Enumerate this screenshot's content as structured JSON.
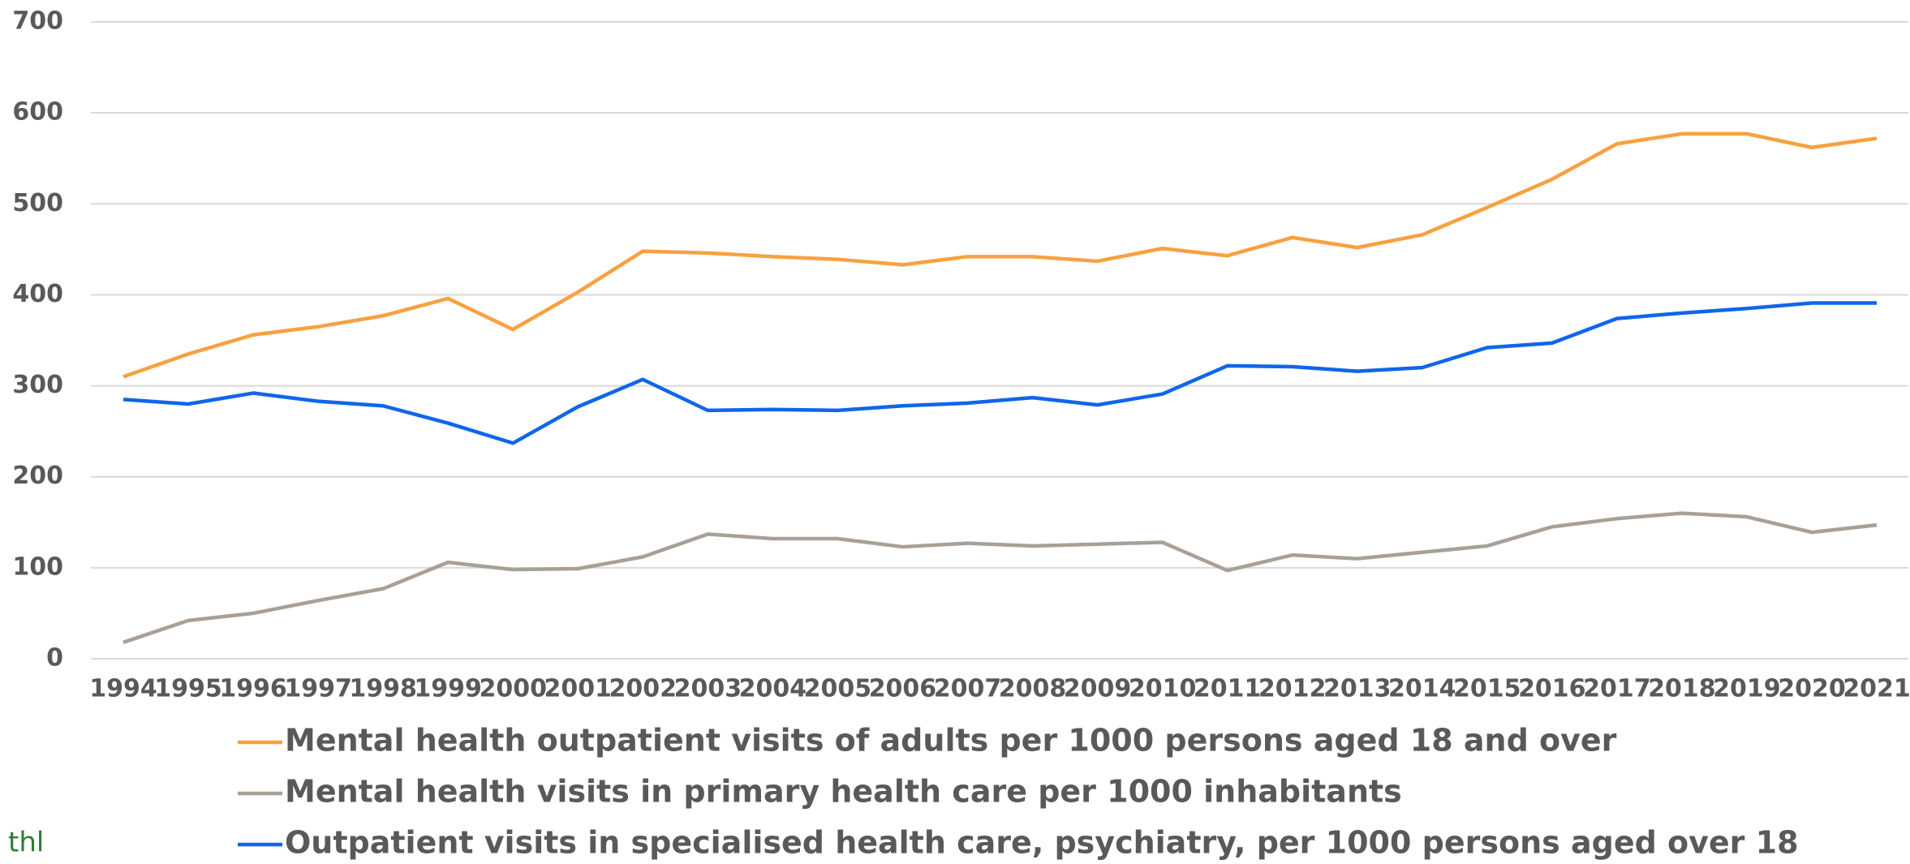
{
  "logo": "thl",
  "chart_data": {
    "type": "line",
    "categories": [
      "1994",
      "1995",
      "1996",
      "1997",
      "1998",
      "1999",
      "2000",
      "2001",
      "2002",
      "2003",
      "2004",
      "2005",
      "2006",
      "2007",
      "2008",
      "2009",
      "2010",
      "2011",
      "2012",
      "2013",
      "2014",
      "2015",
      "2016",
      "2017",
      "2018",
      "2019",
      "2020",
      "2021"
    ],
    "series": [
      {
        "name": "Mental health outpatient visits of adults per 1000 persons aged 18 and over",
        "color": "#f8a13f",
        "values": [
          310,
          335,
          356,
          365,
          377,
          396,
          362,
          403,
          448,
          446,
          442,
          439,
          433,
          442,
          442,
          437,
          451,
          443,
          463,
          452,
          466,
          496,
          527,
          566,
          577,
          577,
          562,
          572
        ]
      },
      {
        "name": "Mental health visits in primary health care per 1000 inhabitants",
        "color": "#a8a097",
        "values": [
          18,
          42,
          50,
          64,
          77,
          106,
          98,
          99,
          112,
          137,
          132,
          132,
          123,
          127,
          124,
          126,
          128,
          97,
          114,
          110,
          117,
          124,
          145,
          154,
          160,
          156,
          139,
          147
        ]
      },
      {
        "name": "Outpatient visits in specialised health care, psychiatry, per 1000 persons aged over 18",
        "color": "#0f66e8",
        "values": [
          285,
          280,
          292,
          283,
          278,
          259,
          237,
          277,
          307,
          273,
          274,
          273,
          278,
          281,
          287,
          279,
          291,
          322,
          321,
          316,
          320,
          342,
          347,
          374,
          380,
          385,
          391,
          391
        ]
      }
    ],
    "ylim": [
      0,
      700
    ],
    "yticks": [
      0,
      100,
      200,
      300,
      400,
      500,
      600,
      700
    ],
    "grid": true
  }
}
